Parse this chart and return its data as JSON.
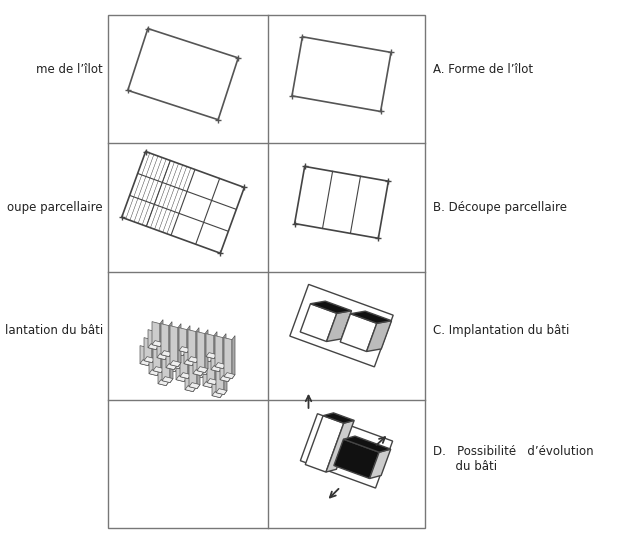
{
  "background_color": "#ffffff",
  "grid_color": "#777777",
  "label_right": [
    "A. Forme de l’îlot",
    "B. Découpe parcellaire",
    "C. Implantation du bâti",
    "D.   Possibilité   d’évolution\n      du bâti"
  ],
  "left_labels_short": [
    "me de l’îlot",
    "oupe parcellaire",
    "lantation du bâti",
    ""
  ],
  "figsize": [
    6.21,
    5.4
  ],
  "dpi": 100
}
